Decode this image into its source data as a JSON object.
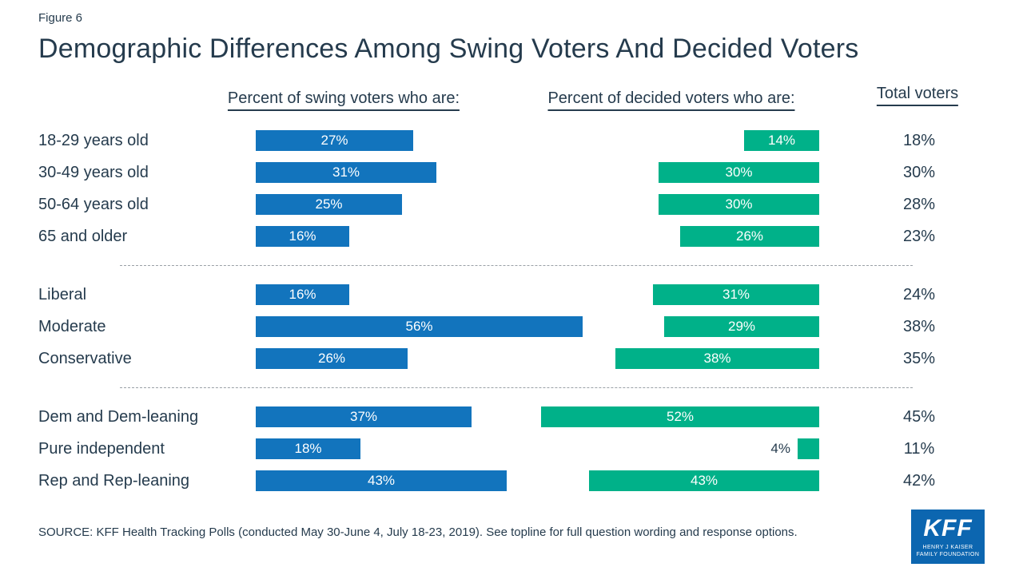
{
  "figure_label": "Figure 6",
  "title": "Demographic Differences Among Swing Voters And Decided Voters",
  "headers": {
    "swing": "Percent of swing voters who are:",
    "decided": "Percent of decided voters who are:",
    "total": "Total voters"
  },
  "source": "SOURCE: KFF Health Tracking Polls (conducted May 30-June 4, July 18-23, 2019). See topline for full question wording and response options.",
  "logo": {
    "kff": "KFF",
    "line1": "HENRY J KAISER",
    "line2": "FAMILY FOUNDATION"
  },
  "colors": {
    "swing": "#1274bd",
    "decided": "#00b189",
    "text": "#253b4d",
    "logo_blue": "#0c66b0"
  },
  "chart_data": {
    "type": "bar",
    "orientation": "horizontal",
    "series": [
      "Percent of swing voters who are:",
      "Percent of decided voters who are:",
      "Total voters"
    ],
    "unit": "%",
    "xlim": [
      0,
      60
    ],
    "grid": false,
    "legend_position": "column-headers",
    "groups": [
      {
        "name": "age",
        "rows": [
          {
            "label": "18-29 years old",
            "swing": 27,
            "decided": 14,
            "total": 18
          },
          {
            "label": "30-49 years old",
            "swing": 31,
            "decided": 30,
            "total": 30
          },
          {
            "label": "50-64 years old",
            "swing": 25,
            "decided": 30,
            "total": 28
          },
          {
            "label": "65 and older",
            "swing": 16,
            "decided": 26,
            "total": 23
          }
        ]
      },
      {
        "name": "ideology",
        "rows": [
          {
            "label": "Liberal",
            "swing": 16,
            "decided": 31,
            "total": 24
          },
          {
            "label": "Moderate",
            "swing": 56,
            "decided": 29,
            "total": 38
          },
          {
            "label": "Conservative",
            "swing": 26,
            "decided": 38,
            "total": 35
          }
        ]
      },
      {
        "name": "party",
        "rows": [
          {
            "label": "Dem and Dem-leaning",
            "swing": 37,
            "decided": 52,
            "total": 45
          },
          {
            "label": "Pure independent",
            "swing": 18,
            "decided": 4,
            "total": 11
          },
          {
            "label": "Rep and Rep-leaning",
            "swing": 43,
            "decided": 43,
            "total": 42
          }
        ]
      }
    ]
  }
}
